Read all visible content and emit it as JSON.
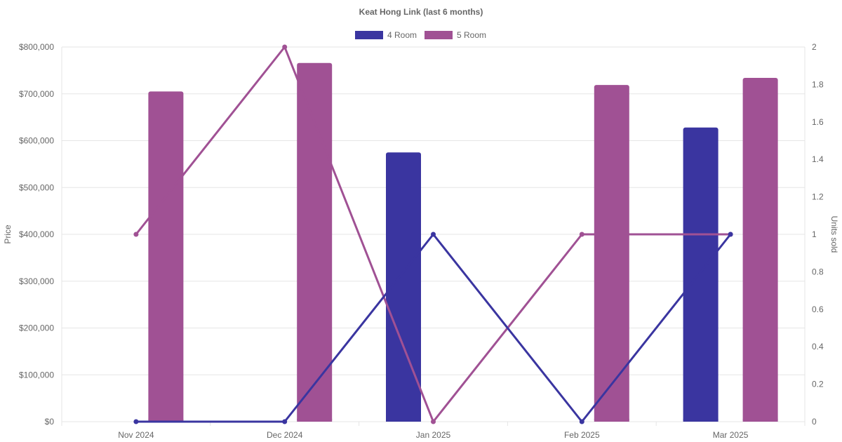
{
  "chart_data": {
    "type": "bar",
    "title": "Keat Hong Link (last 6 months)",
    "categories": [
      "Nov 2024",
      "Dec 2024",
      "Jan 2025",
      "Feb 2025",
      "Mar 2025"
    ],
    "y_left": {
      "label": "Price",
      "range": [
        0,
        800000
      ],
      "ticks": [
        0,
        100000,
        200000,
        300000,
        400000,
        500000,
        600000,
        700000,
        800000
      ],
      "tick_labels": [
        "$0",
        "$100,000",
        "$200,000",
        "$300,000",
        "$400,000",
        "$500,000",
        "$600,000",
        "$700,000",
        "$800,000"
      ]
    },
    "y_right": {
      "label": "Units sold",
      "range": [
        0,
        2
      ],
      "ticks": [
        0,
        0.2,
        0.4,
        0.6,
        0.8,
        1,
        1.2,
        1.4,
        1.6,
        1.8,
        2
      ],
      "tick_labels": [
        "0",
        "0.2",
        "0.4",
        "0.6",
        "0.8",
        "1",
        "1.2",
        "1.4",
        "1.6",
        "1.8",
        "2"
      ]
    },
    "legend": {
      "position": "top"
    },
    "grid": true,
    "series": [
      {
        "name": "4 Room",
        "color": "#3a35a0",
        "price": [
          null,
          null,
          575000,
          null,
          628000
        ],
        "units_sold": [
          0,
          0,
          1,
          0,
          1
        ]
      },
      {
        "name": "5 Room",
        "color": "#a05194",
        "price": [
          705000,
          766000,
          null,
          719000,
          734000
        ],
        "units_sold": [
          1,
          2,
          0,
          1,
          1
        ]
      }
    ]
  }
}
